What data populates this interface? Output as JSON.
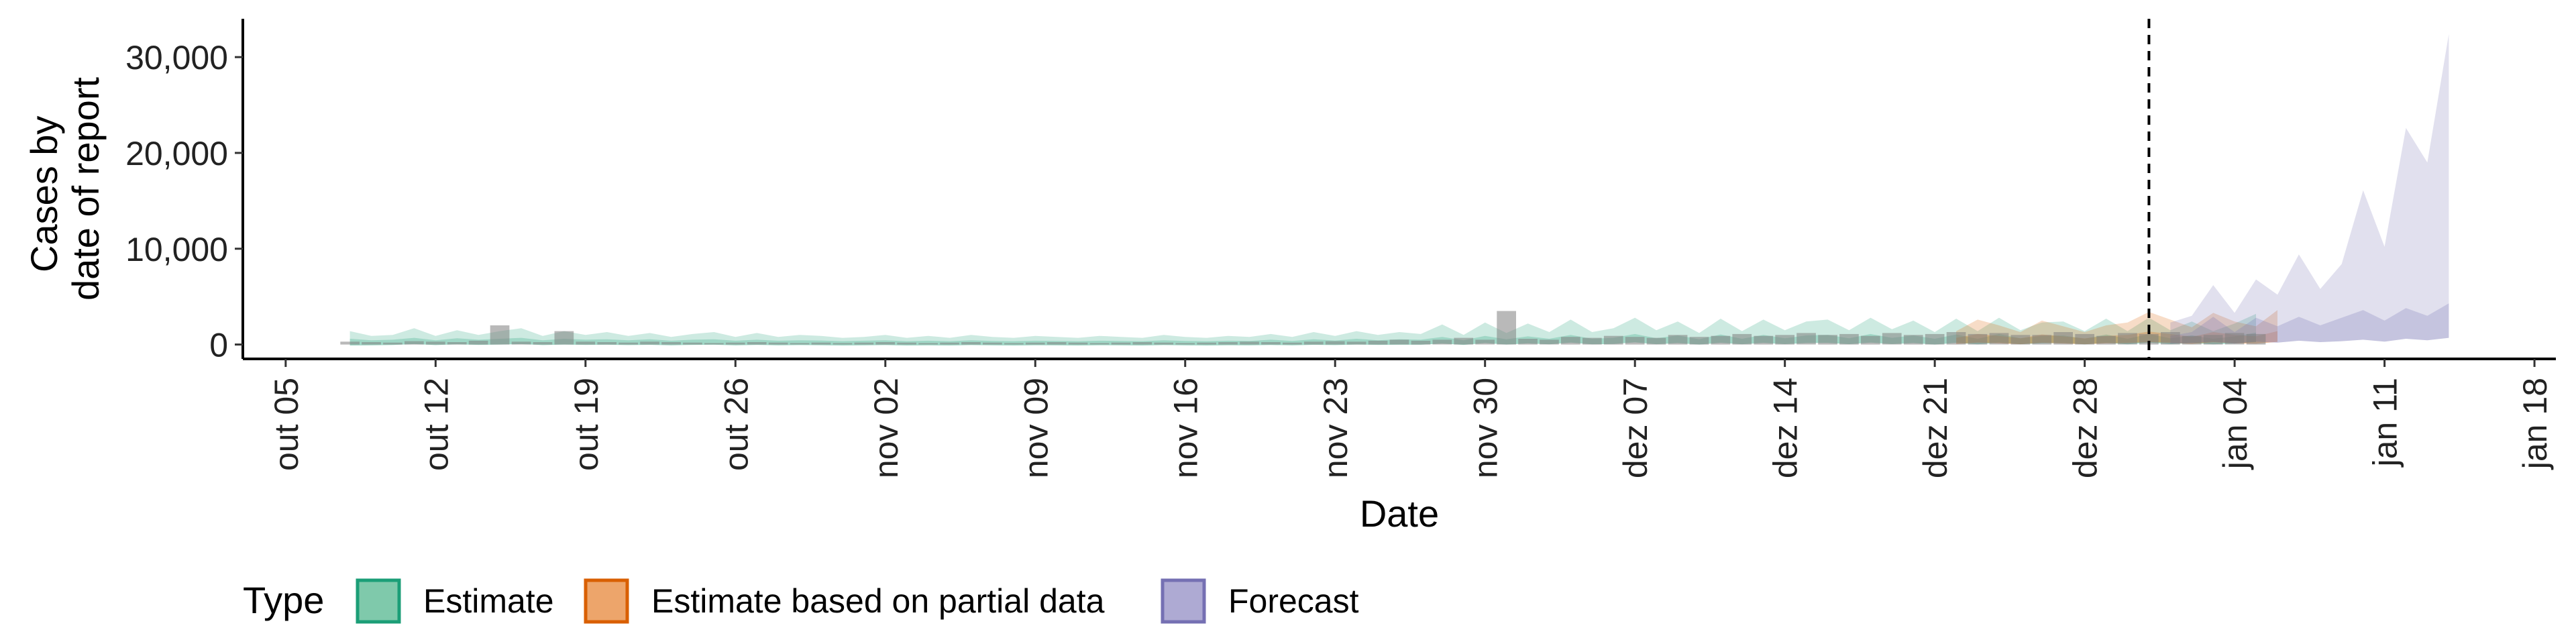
{
  "chart_data": {
    "type": "area",
    "xlabel": "Date",
    "ylabel_lines": [
      "Cases by",
      "date of report"
    ],
    "ylim": [
      -1500,
      34000
    ],
    "y_ticks": [
      0,
      10000,
      20000,
      30000
    ],
    "y_tick_labels": [
      "0",
      "10,000",
      "20,000",
      "30,000"
    ],
    "x_ticks": [
      "2020-10-05",
      "2020-10-12",
      "2020-10-19",
      "2020-10-26",
      "2020-11-02",
      "2020-11-09",
      "2020-11-16",
      "2020-11-23",
      "2020-11-30",
      "2020-12-07",
      "2020-12-14",
      "2020-12-21",
      "2020-12-28",
      "2021-01-04",
      "2021-01-11",
      "2021-01-18"
    ],
    "x_tick_labels": [
      "out 05",
      "out 12",
      "out 19",
      "out 26",
      "nov 02",
      "nov 09",
      "nov 16",
      "nov 23",
      "nov 30",
      "dez 07",
      "dez 14",
      "dez 21",
      "dez 28",
      "jan 04",
      "jan 11",
      "jan 18"
    ],
    "x_range": [
      "2020-10-03",
      "2021-01-19"
    ],
    "forecast_date": "2020-12-31",
    "legend": {
      "title": "Type",
      "position": "bottom",
      "items": [
        {
          "label": "Estimate",
          "fill": "#7fc9ab",
          "stroke": "#1b9e77"
        },
        {
          "label": "Estimate based on partial data",
          "fill": "#eda56b",
          "stroke": "#d95f02"
        },
        {
          "label": "Forecast",
          "fill": "#aeaad3",
          "stroke": "#7570b3"
        }
      ]
    },
    "colors": {
      "Estimate": "#1b9e77",
      "Estimate based on partial data": "#d95f02",
      "Forecast": "#7570b3",
      "reported": "#808080"
    },
    "reported_cases": {
      "start": "2020-10-08",
      "values": [
        300,
        250,
        200,
        350,
        300,
        250,
        400,
        2000,
        300,
        250,
        1400,
        300,
        250,
        200,
        300,
        250,
        200,
        150,
        200,
        250,
        200,
        150,
        200,
        150,
        200,
        250,
        200,
        150,
        200,
        250,
        200,
        150,
        200,
        250,
        200,
        150,
        200,
        250,
        200,
        150,
        200,
        250,
        300,
        250,
        200,
        300,
        350,
        300,
        400,
        500,
        400,
        500,
        700,
        500,
        3500,
        600,
        500,
        800,
        700,
        900,
        800,
        700,
        1000,
        800,
        900,
        1100,
        900,
        1000,
        1200,
        1000,
        1100,
        900,
        1200,
        1000,
        1100,
        1300,
        1100,
        1200,
        1000,
        1000,
        1300,
        1100,
        900,
        1200,
        1100,
        1300,
        900,
        1000,
        1200,
        1100
      ]
    },
    "estimate": {
      "start": "2020-10-08",
      "upper": [
        1400,
        900,
        1000,
        1700,
        900,
        1500,
        1000,
        1400,
        1700,
        900,
        1400,
        1000,
        1300,
        900,
        1200,
        800,
        1100,
        1300,
        800,
        1200,
        800,
        1000,
        900,
        700,
        800,
        1000,
        700,
        900,
        700,
        1000,
        800,
        700,
        900,
        800,
        700,
        900,
        800,
        700,
        1000,
        800,
        700,
        900,
        800,
        1100,
        800,
        1300,
        900,
        1400,
        1000,
        1300,
        1100,
        2100,
        1000,
        2300,
        1200,
        2200,
        1300,
        2600,
        1300,
        1700,
        2800,
        1500,
        2400,
        1200,
        2700,
        1400,
        2600,
        1500,
        2400,
        2600,
        1500,
        2800,
        1600,
        2500,
        1300,
        2700,
        1400,
        2800,
        1500,
        2300,
        2400,
        1400,
        2700,
        1400,
        2800,
        1500,
        2400,
        1400,
        2200,
        3200
      ],
      "mid_upper": [
        600,
        450,
        500,
        700,
        450,
        650,
        500,
        600,
        700,
        450,
        600,
        500,
        550,
        450,
        550,
        400,
        500,
        550,
        400,
        500,
        400,
        450,
        420,
        350,
        400,
        450,
        350,
        400,
        350,
        450,
        380,
        350,
        400,
        380,
        350,
        400,
        380,
        350,
        450,
        380,
        350,
        400,
        380,
        500,
        380,
        550,
        420,
        600,
        450,
        550,
        500,
        800,
        450,
        900,
        550,
        850,
        600,
        1000,
        600,
        700,
        1100,
        650,
        950,
        550,
        1050,
        600,
        1000,
        650,
        950,
        1000,
        650,
        1100,
        700,
        950,
        600,
        1050,
        600,
        1100,
        650,
        900,
        950,
        600,
        1050,
        600,
        1100,
        650,
        950,
        600,
        850,
        1250
      ],
      "lower": [
        -100,
        -80,
        -50,
        50,
        -60,
        20,
        -40,
        0,
        50,
        -60,
        0,
        -40,
        -20,
        -60,
        -30,
        -80,
        -40,
        -20,
        -80,
        -40,
        -80,
        -60,
        -70,
        -100,
        -80,
        -60,
        -100,
        -80,
        -100,
        -60,
        -80,
        -100,
        -70,
        -80,
        -100,
        -70,
        -80,
        -100,
        -60,
        -80,
        -100,
        -70,
        -80,
        -50,
        -80,
        -30,
        -60,
        0,
        -40,
        -20,
        -20,
        100,
        -40,
        150,
        0,
        120,
        20,
        200,
        20,
        60,
        220,
        30,
        150,
        0,
        180,
        30,
        170,
        40,
        150,
        170,
        40,
        200,
        50,
        150,
        0,
        180,
        20,
        200,
        40,
        130,
        150,
        20,
        180,
        20,
        200,
        40,
        150,
        20,
        120,
        250
      ]
    },
    "partial": {
      "start": "2020-12-22",
      "upper": [
        1400,
        2600,
        2000,
        1300,
        2500,
        1900,
        1300,
        2000,
        2300,
        3400,
        2600,
        1800,
        3300,
        2400,
        1900,
        3600
      ],
      "mid_upper": [
        700,
        1100,
        900,
        650,
        1050,
        850,
        650,
        900,
        1000,
        1350,
        1100,
        800,
        1300,
        1000,
        850,
        1400
      ],
      "lower": [
        50,
        200,
        120,
        30,
        180,
        100,
        30,
        120,
        150,
        250,
        180,
        60,
        240,
        130,
        80,
        280
      ]
    },
    "forecast": {
      "start": "2021-01-01",
      "upper": [
        2300,
        3000,
        6200,
        3300,
        6800,
        5200,
        9400,
        5800,
        8400,
        16100,
        10200,
        22600,
        19000,
        32400
      ],
      "mid_upper": [
        900,
        1300,
        2900,
        1300,
        2800,
        1900,
        2900,
        2000,
        2800,
        3600,
        2500,
        3800,
        3000,
        4300
      ],
      "lower": [
        100,
        150,
        300,
        100,
        300,
        200,
        400,
        250,
        350,
        500,
        300,
        600,
        450,
        700
      ]
    }
  }
}
